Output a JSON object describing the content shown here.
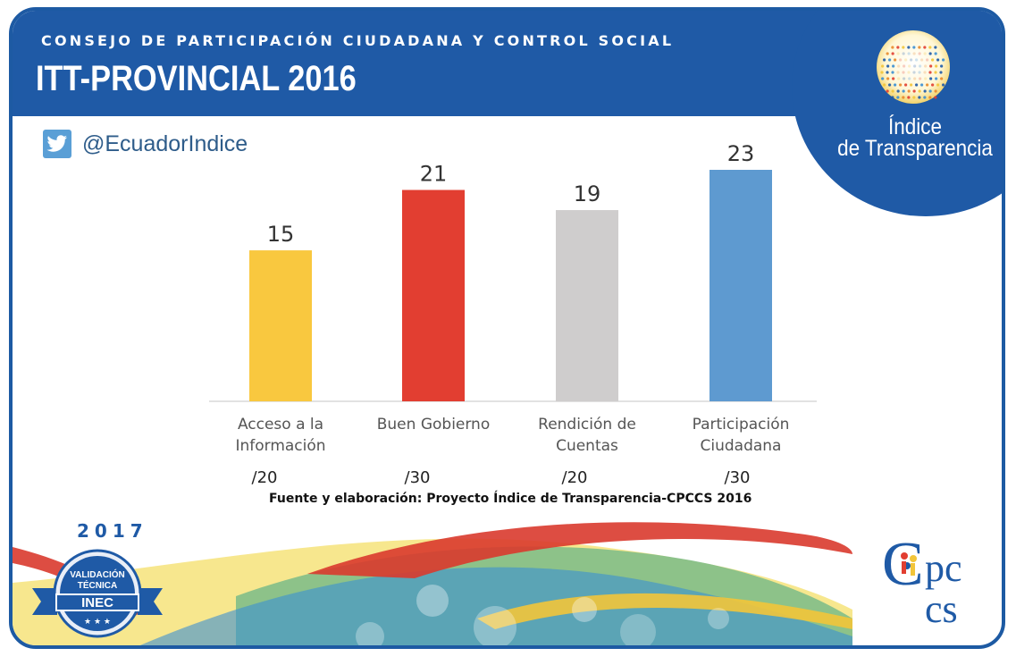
{
  "header": {
    "org_name": "CONSEJO DE PARTICIPACIÓN CIUDADANA Y CONTROL SOCIAL",
    "title": "ITT-PROVINCIAL 2016"
  },
  "brand": {
    "line1": "Índice",
    "line2": "de Transparencia"
  },
  "social": {
    "icon": "twitter-bird-icon",
    "handle": "@EcuadorIndice"
  },
  "chart_data": {
    "type": "bar",
    "categories": [
      [
        "Acceso a la",
        "Información"
      ],
      [
        "Buen Gobierno"
      ],
      [
        "Rendición de",
        "Cuentas"
      ],
      [
        "Participación",
        "Ciudadana"
      ]
    ],
    "values": [
      15,
      21,
      19,
      23
    ],
    "maxima": [
      "/20",
      "/30",
      "/20",
      "/30"
    ],
    "colors": [
      "#f9c83f",
      "#e23e31",
      "#cfcdcd",
      "#5e9ad0"
    ],
    "ylim": [
      0,
      25
    ]
  },
  "source": "Fuente y elaboración: Proyecto Índice de Transparencia-CPCCS 2016",
  "footer": {
    "year": "2017",
    "badge": {
      "line1": "VALIDACIÓN",
      "line2": "TÉCNICA",
      "line3": "INEC"
    },
    "logo_text": "Cpccs"
  }
}
